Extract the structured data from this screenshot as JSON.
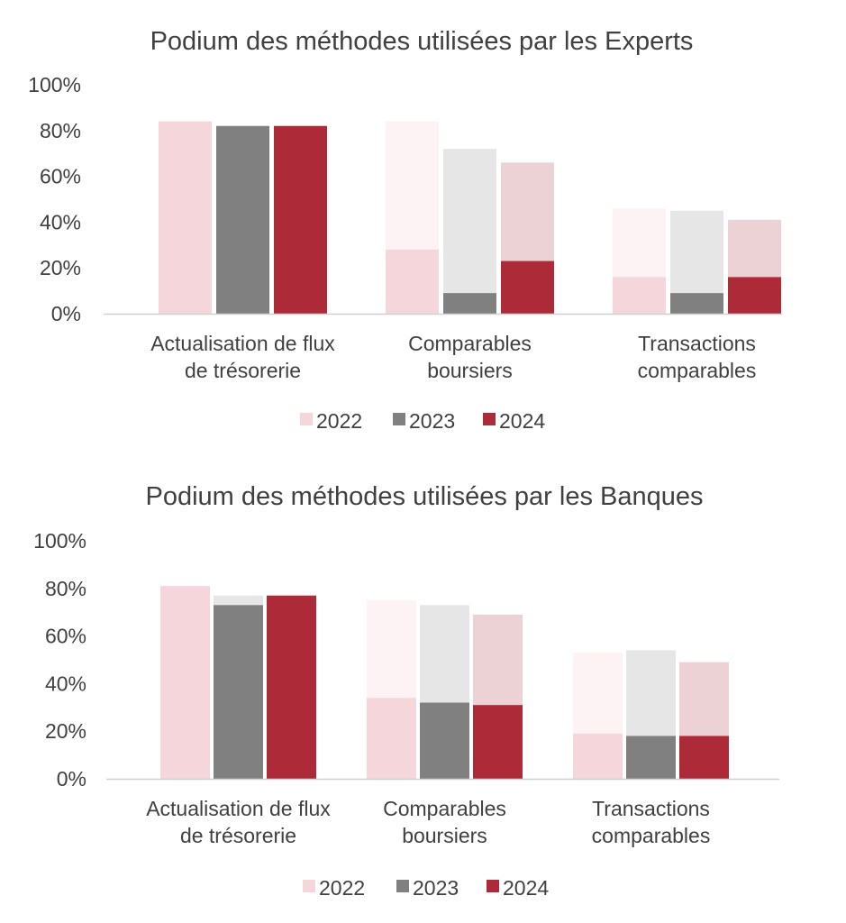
{
  "chart_data": [
    {
      "type": "bar",
      "title": "Podium des méthodes utilisées par les Experts",
      "categories": [
        "Actualisation de flux de trésorerie",
        "Comparables boursiers",
        "Transactions comparables"
      ],
      "ylim": [
        0,
        100
      ],
      "yticks": [
        "0%",
        "20%",
        "40%",
        "60%",
        "80%",
        "100%"
      ],
      "legend_position": "bottom",
      "series": [
        {
          "name": "2022",
          "color": "#f5d6da",
          "light_color": "#fdf3f4",
          "values": [
            84,
            28,
            16
          ],
          "totals": [
            84,
            84,
            46
          ]
        },
        {
          "name": "2023",
          "color": "#808080",
          "light_color": "#e6e6e6",
          "values": [
            82,
            9,
            9
          ],
          "totals": [
            82,
            72,
            45
          ]
        },
        {
          "name": "2024",
          "color": "#ad2b39",
          "light_color": "#edd2d5",
          "values": [
            82,
            23,
            16
          ],
          "totals": [
            82,
            66,
            41
          ]
        }
      ]
    },
    {
      "type": "bar",
      "title": "Podium des méthodes utilisées par les Banques",
      "categories": [
        "Actualisation de flux de trésorerie",
        "Comparables boursiers",
        "Transactions comparables"
      ],
      "ylim": [
        0,
        100
      ],
      "yticks": [
        "0%",
        "20%",
        "40%",
        "60%",
        "80%",
        "100%"
      ],
      "legend_position": "bottom",
      "series": [
        {
          "name": "2022",
          "color": "#f5d6da",
          "light_color": "#fdf3f4",
          "values": [
            81,
            34,
            19
          ],
          "totals": [
            81,
            75,
            53
          ]
        },
        {
          "name": "2023",
          "color": "#808080",
          "light_color": "#e6e6e6",
          "values": [
            73,
            32,
            18
          ],
          "totals": [
            77,
            73,
            54
          ]
        },
        {
          "name": "2024",
          "color": "#ad2b39",
          "light_color": "#edd2d5",
          "values": [
            77,
            31,
            18
          ],
          "totals": [
            77,
            69,
            49
          ]
        }
      ]
    }
  ]
}
